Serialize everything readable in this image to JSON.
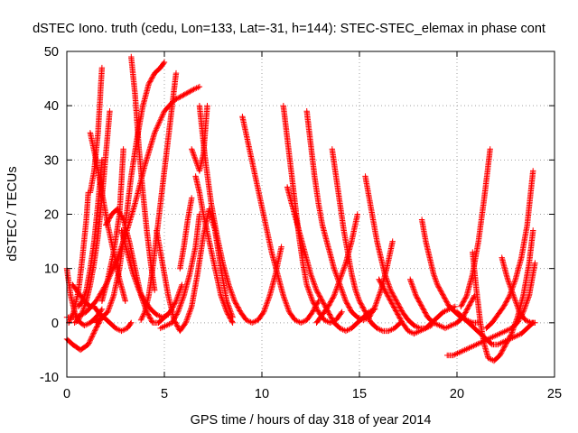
{
  "chart_data": {
    "type": "scatter",
    "title": "dSTEC Iono. truth (cedu, Lon=133, Lat=-31, h=144): STEC-STEC_elemax in phase cont",
    "xlabel": "GPS time / hours of day 318 of year 2014",
    "ylabel": "dSTEC  / TECUs",
    "xlim": [
      0,
      25
    ],
    "ylim": [
      -10,
      50
    ],
    "xticks": [
      "0",
      "5",
      "10",
      "15",
      "20",
      "25"
    ],
    "yticks": [
      "-10",
      "0",
      "10",
      "20",
      "30",
      "40",
      "50"
    ],
    "grid": true,
    "marker": "+",
    "series_color": "#ff0000",
    "tracks": [
      {
        "x": [
          0.0,
          0.3,
          0.7,
          1.1,
          1.5,
          1.8
        ],
        "y": [
          -3,
          -4,
          -5,
          -4,
          -1,
          1
        ]
      },
      {
        "x": [
          0.0,
          0.5,
          1.0,
          1.5,
          2.0,
          2.5,
          3.0,
          3.5,
          4.0,
          4.5,
          5.0,
          5.5,
          6.0,
          6.5,
          6.8
        ],
        "y": [
          1,
          1,
          2,
          4,
          7,
          11,
          16,
          22,
          29,
          35,
          39,
          41,
          42,
          43,
          43.5
        ]
      },
      {
        "x": [
          0.0,
          0.2,
          0.4,
          0.6,
          0.9,
          1.2,
          1.5,
          1.8
        ],
        "y": [
          10,
          5,
          2,
          0.3,
          -0.5,
          0,
          1,
          2.5
        ]
      },
      {
        "x": [
          0.1,
          0.35,
          0.6,
          0.8,
          1.0,
          1.1
        ],
        "y": [
          0,
          2,
          6,
          12,
          19,
          24
        ]
      },
      {
        "x": [
          0.3,
          0.6,
          0.9,
          1.2,
          1.4,
          1.6,
          1.9,
          2.2,
          2.5,
          2.8,
          3.1,
          3.3
        ],
        "y": [
          7,
          5.5,
          4,
          3,
          3,
          2,
          1,
          0,
          -1,
          -1.5,
          -1,
          0
        ]
      },
      {
        "x": [
          0.4,
          0.6,
          0.8,
          1.0,
          1.2,
          1.4,
          1.6,
          1.8,
          2.0,
          2.2
        ],
        "y": [
          0,
          0.5,
          2,
          4,
          7,
          11,
          16,
          23,
          31,
          39
        ]
      },
      {
        "x": [
          0.6,
          0.8,
          1.0,
          1.2,
          1.4,
          1.6,
          1.8
        ],
        "y": [
          3,
          4,
          6,
          10,
          15,
          22,
          30
        ]
      },
      {
        "x": [
          1.2,
          1.4,
          1.6,
          1.8
        ],
        "y": [
          24,
          28,
          35,
          47
        ]
      },
      {
        "x": [
          1.5,
          1.8,
          2.1,
          2.4,
          2.7,
          3.0,
          3.3,
          3.6,
          3.9,
          4.2,
          4.5,
          4.8,
          5.0
        ],
        "y": [
          0,
          1,
          2,
          5,
          10,
          18,
          27,
          34,
          40,
          44,
          46,
          47,
          48
        ]
      },
      {
        "x": [
          1.2,
          1.5,
          1.8,
          2.1,
          2.4,
          2.7,
          3.0
        ],
        "y": [
          35,
          30,
          24,
          18,
          13,
          8,
          4
        ]
      },
      {
        "x": [
          1.8,
          2.1,
          2.4,
          2.7,
          2.8,
          2.9
        ],
        "y": [
          4,
          8,
          13,
          20,
          26,
          32
        ]
      },
      {
        "x": [
          2.0,
          2.3,
          2.6,
          2.9,
          3.2,
          3.5,
          3.8,
          4.1,
          4.4,
          4.7,
          5.0,
          5.3,
          5.6,
          5.9
        ],
        "y": [
          18,
          20,
          21,
          19,
          15,
          10,
          5,
          2,
          0,
          0,
          1,
          2,
          4,
          7
        ]
      },
      {
        "x": [
          2.8,
          3.1,
          3.4,
          3.7,
          4.0,
          4.3,
          4.6,
          4.9,
          5.2
        ],
        "y": [
          17,
          13,
          9,
          6,
          4,
          2.5,
          1.5,
          1,
          1.5
        ]
      },
      {
        "x": [
          3.3,
          3.5,
          3.7,
          3.9,
          4.1,
          4.3,
          4.5
        ],
        "y": [
          49,
          42,
          32,
          24,
          17,
          11,
          6
        ]
      },
      {
        "x": [
          3.8,
          4.0,
          4.2,
          4.4,
          4.6,
          4.8,
          5.0,
          5.2,
          5.4,
          5.6
        ],
        "y": [
          0.5,
          2,
          5,
          10,
          16,
          22,
          28,
          34,
          40,
          46
        ]
      },
      {
        "x": [
          4.6,
          4.9,
          5.2,
          5.5,
          5.8,
          6.1,
          6.4,
          6.7,
          7.0,
          7.3,
          7.6,
          7.9,
          8.2,
          8.5
        ],
        "y": [
          17,
          11,
          5,
          0.5,
          -1.5,
          0,
          3,
          9,
          16,
          21,
          17,
          10,
          4,
          1
        ]
      },
      {
        "x": [
          4.8,
          5.1,
          5.4,
          5.7,
          6.0,
          6.3,
          6.6,
          6.8
        ],
        "y": [
          -1,
          -0.5,
          0,
          2,
          5,
          9,
          14,
          20
        ]
      },
      {
        "x": [
          5.8,
          6.0,
          6.2,
          6.4
        ],
        "y": [
          10,
          14,
          19,
          23
        ]
      },
      {
        "x": [
          6.4,
          6.6,
          6.8,
          7.0,
          7.2
        ],
        "y": [
          32,
          30,
          28,
          31,
          40
        ]
      },
      {
        "x": [
          6.8,
          7.1,
          7.4,
          7.7,
          8.0,
          8.3,
          8.6,
          8.9,
          9.2,
          9.5,
          9.8,
          10.1,
          10.4,
          10.7,
          11.0
        ],
        "y": [
          40,
          30,
          22,
          16,
          11,
          7,
          4,
          2,
          0.5,
          0,
          0.5,
          2,
          5,
          9,
          14
        ]
      },
      {
        "x": [
          6.6,
          6.8,
          7.0,
          7.3,
          7.6,
          7.9,
          8.2,
          8.5
        ],
        "y": [
          27,
          24,
          20,
          15,
          10,
          5,
          2,
          0
        ]
      },
      {
        "x": [
          9.0,
          9.3,
          9.6,
          9.9,
          10.2,
          10.5,
          10.8,
          11.1,
          11.4,
          11.7,
          12.0,
          12.3,
          12.6,
          12.9
        ],
        "y": [
          38,
          33,
          28,
          23,
          18,
          13,
          9,
          5,
          2,
          0.5,
          0,
          0.5,
          2,
          4
        ]
      },
      {
        "x": [
          11.1,
          11.3,
          11.5,
          11.7,
          11.9,
          12.1,
          12.3,
          12.6,
          12.9,
          13.2,
          13.5,
          13.8,
          14.1
        ],
        "y": [
          40,
          34,
          28,
          22,
          16,
          11,
          7,
          4,
          2,
          0.5,
          0,
          0.5,
          2
        ]
      },
      {
        "x": [
          11.3,
          11.6,
          11.9,
          12.2,
          12.5,
          12.8,
          13.1,
          13.4,
          13.7,
          14.0,
          14.3,
          14.6,
          14.9,
          15.2,
          15.5,
          15.8
        ],
        "y": [
          25,
          21,
          17,
          13,
          9,
          6,
          4,
          2,
          0,
          -1,
          -1.5,
          -1,
          0,
          1,
          2,
          2.5
        ]
      },
      {
        "x": [
          12.3,
          12.5,
          12.7,
          12.9,
          13.1,
          13.4,
          13.7,
          14.0,
          14.3,
          14.6,
          14.9,
          15.2,
          15.5,
          15.8,
          16.1,
          16.4,
          16.7
        ],
        "y": [
          39,
          33,
          27,
          22,
          18,
          14,
          10,
          7,
          4,
          2,
          1,
          0.5,
          1,
          3,
          6,
          10,
          15
        ]
      },
      {
        "x": [
          13.6,
          13.8,
          14.0,
          14.2,
          14.4,
          14.6,
          14.8,
          15.0,
          15.3,
          15.6,
          15.9,
          16.2,
          16.5,
          16.8,
          17.1
        ],
        "y": [
          32,
          27,
          22,
          17,
          13,
          9,
          6,
          4,
          2,
          0,
          -1,
          -1.5,
          -1.5,
          -1,
          0
        ]
      },
      {
        "x": [
          12.8,
          13.1,
          13.4,
          13.7,
          14.0,
          14.3,
          14.6,
          14.9
        ],
        "y": [
          0,
          1.5,
          3,
          5,
          8,
          11,
          15,
          20
        ]
      },
      {
        "x": [
          15.3,
          15.5,
          15.7,
          15.9,
          16.1,
          16.3,
          16.6,
          16.9,
          17.2,
          17.5,
          17.8,
          18.1,
          18.4,
          18.7
        ],
        "y": [
          27,
          23,
          19,
          15,
          12,
          9,
          6,
          4,
          2,
          0.5,
          -0.5,
          -1,
          -1,
          -0.5
        ]
      },
      {
        "x": [
          16.0,
          16.3,
          16.6,
          16.9,
          17.2,
          17.5,
          17.8,
          18.1,
          18.4,
          18.7,
          19.0,
          19.3,
          19.6,
          19.9
        ],
        "y": [
          8,
          6,
          4,
          2,
          0,
          -1.5,
          -2,
          -1.5,
          -1,
          0,
          1,
          2,
          2.5,
          3
        ]
      },
      {
        "x": [
          17.6,
          17.9,
          18.2,
          18.5,
          18.8,
          19.1,
          19.4,
          19.7,
          20.0,
          20.3,
          20.6,
          20.9
        ],
        "y": [
          8,
          5,
          3,
          1,
          0,
          -0.5,
          -1,
          -0.5,
          0,
          1,
          3,
          5
        ]
      },
      {
        "x": [
          18.2,
          18.4,
          18.6,
          18.8,
          19.0,
          19.3,
          19.6,
          19.9,
          20.2,
          20.5,
          20.8,
          21.1
        ],
        "y": [
          19,
          15,
          12,
          9,
          7,
          5,
          3,
          2,
          1,
          0.5,
          0,
          0
        ]
      },
      {
        "x": [
          19.5,
          19.8,
          20.1,
          20.4,
          20.7,
          21.0,
          21.3,
          21.6,
          21.9,
          22.2,
          22.5,
          22.8,
          23.1,
          23.4,
          23.7,
          24.0
        ],
        "y": [
          -6,
          -6,
          -5.5,
          -5,
          -4.5,
          -4,
          -3.5,
          -3,
          -2.5,
          -2,
          -1.5,
          -1,
          0,
          2,
          5,
          11
        ]
      },
      {
        "x": [
          20.0,
          20.3,
          20.6,
          20.9,
          21.2,
          21.5,
          21.8,
          22.1,
          22.4,
          22.7,
          23.0,
          23.3,
          23.6,
          23.9
        ],
        "y": [
          2,
          1,
          0,
          -1,
          -2,
          -3,
          -4,
          -4,
          -3.5,
          -3,
          -2.5,
          -2,
          -1,
          0
        ]
      },
      {
        "x": [
          20.2,
          20.5,
          20.8,
          21.1,
          21.4,
          21.7
        ],
        "y": [
          3,
          5,
          9,
          15,
          23,
          32
        ]
      },
      {
        "x": [
          20.8,
          21.0,
          21.2,
          21.4,
          21.6,
          21.9,
          22.2,
          22.5,
          22.8,
          23.1,
          23.4,
          23.7,
          23.9
        ],
        "y": [
          13,
          6,
          0,
          -4,
          -6.5,
          -7,
          -6,
          -4,
          -2,
          1,
          5,
          11,
          17
        ]
      },
      {
        "x": [
          22.3,
          22.6,
          22.9,
          23.2,
          23.5,
          23.8,
          24.0
        ],
        "y": [
          12,
          8,
          5,
          2,
          0.5,
          0,
          0
        ]
      },
      {
        "x": [
          21.5,
          21.8,
          22.1,
          22.4,
          22.7,
          23.0,
          23.3,
          23.6,
          23.9
        ],
        "y": [
          -1,
          0,
          1.5,
          3,
          5,
          8,
          12,
          18,
          28
        ]
      }
    ]
  }
}
